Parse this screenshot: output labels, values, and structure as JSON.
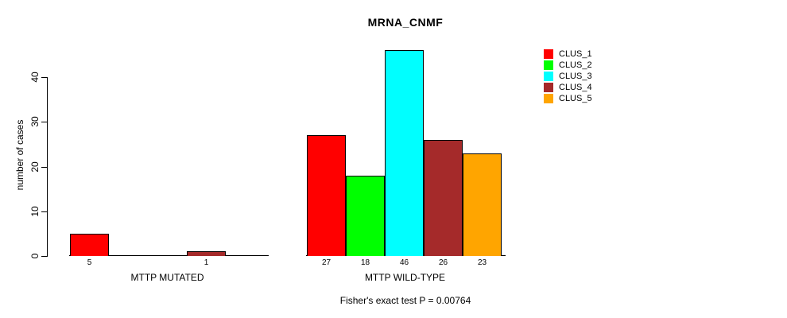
{
  "title": "MRNA_CNMF",
  "ylabel": "number of cases",
  "yticks": [
    "0",
    "10",
    "20",
    "30",
    "40"
  ],
  "legend": {
    "entries": [
      {
        "label": "CLUS_1",
        "color": "#FF0000"
      },
      {
        "label": "CLUS_2",
        "color": "#00FF00"
      },
      {
        "label": "CLUS_3",
        "color": "#00FFFF"
      },
      {
        "label": "CLUS_4",
        "color": "#A52A2A"
      },
      {
        "label": "CLUS_5",
        "color": "#FFA500"
      }
    ]
  },
  "chart_data": {
    "type": "bar",
    "title": "MRNA_CNMF",
    "ylabel": "number of cases",
    "ylim": [
      0,
      46
    ],
    "ytick_values": [
      0,
      10,
      20,
      30,
      40
    ],
    "grid": false,
    "legend_position": "right",
    "series": [
      "CLUS_1",
      "CLUS_2",
      "CLUS_3",
      "CLUS_4",
      "CLUS_5"
    ],
    "colors": [
      "#FF0000",
      "#00FF00",
      "#00FFFF",
      "#A52A2A",
      "#FFA500"
    ],
    "groups": [
      {
        "label": "MTTP MUTATED",
        "values": [
          5,
          0,
          0,
          1,
          0
        ],
        "bar_labels": [
          "5",
          "",
          "",
          "1",
          ""
        ]
      },
      {
        "label": "MTTP WILD-TYPE",
        "values": [
          27,
          18,
          46,
          26,
          23
        ],
        "bar_labels": [
          "27",
          "18",
          "46",
          "26",
          "23"
        ]
      }
    ],
    "annotation": "Fisher's exact test P = 0.00764"
  }
}
